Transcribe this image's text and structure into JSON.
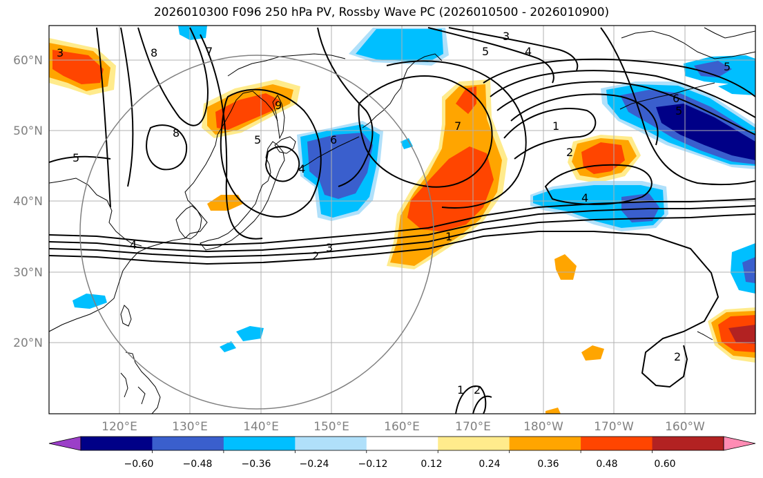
{
  "title": "2026010300 F096 250 hPa PV, Rossby Wave PC (2026010500 - 2026010900)",
  "map": {
    "lat_labels": [
      "60°N",
      "50°N",
      "40°N",
      "30°N",
      "20°N"
    ],
    "lon_labels": [
      "120°E",
      "130°E",
      "140°E",
      "150°E",
      "160°E",
      "170°E",
      "180°W",
      "170°W",
      "160°W"
    ],
    "contour_labels": [
      "3",
      "8",
      "7",
      "8",
      "5",
      "5",
      "4",
      "3",
      "5",
      "4",
      "6",
      "7",
      "9",
      "5",
      "1",
      "2",
      "4",
      "4",
      "3",
      "2",
      "1",
      "1",
      "2",
      "6",
      "5",
      "2"
    ]
  },
  "colorbar": {
    "ticks": [
      "−0.60",
      "−0.48",
      "−0.36",
      "−0.24",
      "−0.12",
      "0.12",
      "0.24",
      "0.36",
      "0.48",
      "0.60"
    ],
    "colors": [
      "#9b3fc8",
      "#000087",
      "#3a5fcd",
      "#00bfff",
      "#b0e0fa",
      "#ffffff",
      "#ffeb8c",
      "#ffa500",
      "#ff4500",
      "#b22222",
      "#ff8cb4"
    ]
  }
}
